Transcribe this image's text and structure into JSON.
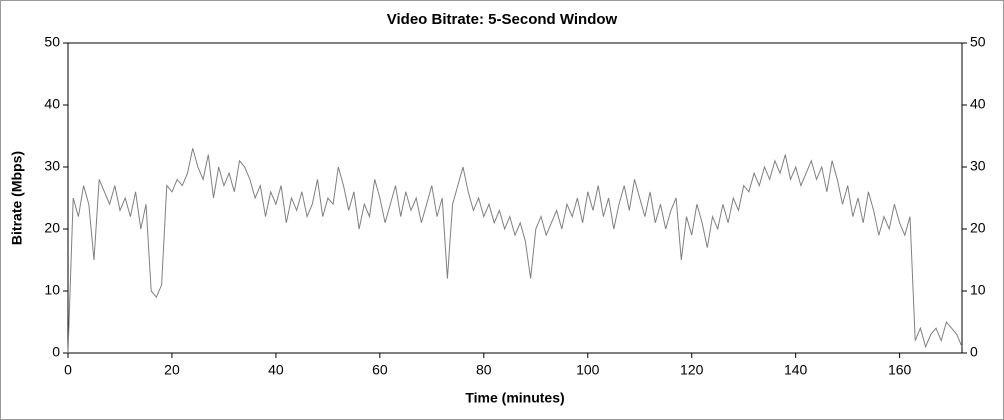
{
  "chart_data": {
    "type": "line",
    "title": "Video Bitrate: 5-Second Window",
    "x_label": "Time (minutes)",
    "y_label": "Bitrate (Mbps)",
    "xlim": [
      0,
      172
    ],
    "xticks": [
      0,
      20,
      40,
      60,
      80,
      100,
      120,
      140,
      160
    ],
    "ylim": [
      0,
      50
    ],
    "yticks": [
      0,
      10,
      20,
      30,
      40,
      50
    ],
    "y2lim": [
      0,
      50
    ],
    "y2ticks": [
      0,
      10,
      20,
      30,
      40,
      50
    ],
    "series": [
      {
        "color": "#808080",
        "x": [
          0,
          1,
          2,
          3,
          4,
          5,
          6,
          7,
          8,
          9,
          10,
          11,
          12,
          13,
          14,
          15,
          16,
          17,
          18,
          19,
          20,
          21,
          22,
          23,
          24,
          25,
          26,
          27,
          28,
          29,
          30,
          31,
          32,
          33,
          34,
          35,
          36,
          37,
          38,
          39,
          40,
          41,
          42,
          43,
          44,
          45,
          46,
          47,
          48,
          49,
          50,
          51,
          52,
          53,
          54,
          55,
          56,
          57,
          58,
          59,
          60,
          61,
          62,
          63,
          64,
          65,
          66,
          67,
          68,
          69,
          70,
          71,
          72,
          73,
          74,
          75,
          76,
          77,
          78,
          79,
          80,
          81,
          82,
          83,
          84,
          85,
          86,
          87,
          88,
          89,
          90,
          91,
          92,
          93,
          94,
          95,
          96,
          97,
          98,
          99,
          100,
          101,
          102,
          103,
          104,
          105,
          106,
          107,
          108,
          109,
          110,
          111,
          112,
          113,
          114,
          115,
          116,
          117,
          118,
          119,
          120,
          121,
          122,
          123,
          124,
          125,
          126,
          127,
          128,
          129,
          130,
          131,
          132,
          133,
          134,
          135,
          136,
          137,
          138,
          139,
          140,
          141,
          142,
          143,
          144,
          145,
          146,
          147,
          148,
          149,
          150,
          151,
          152,
          153,
          154,
          155,
          156,
          157,
          158,
          159,
          160,
          161,
          162,
          163,
          164,
          165,
          166,
          167,
          168,
          169,
          170,
          171,
          172
        ],
        "values": [
          0,
          25,
          22,
          27,
          24,
          15,
          28,
          26,
          24,
          27,
          23,
          25,
          22,
          26,
          20,
          24,
          10,
          9,
          11,
          27,
          26,
          28,
          27,
          29,
          33,
          30,
          28,
          32,
          25,
          30,
          27,
          29,
          26,
          31,
          30,
          28,
          25,
          27,
          22,
          26,
          24,
          27,
          21,
          25,
          23,
          26,
          22,
          24,
          28,
          22,
          25,
          24,
          30,
          27,
          23,
          26,
          20,
          24,
          22,
          28,
          25,
          21,
          24,
          27,
          22,
          26,
          23,
          25,
          21,
          24,
          27,
          22,
          25,
          12,
          24,
          27,
          30,
          26,
          23,
          25,
          22,
          24,
          21,
          23,
          20,
          22,
          19,
          21,
          18,
          12,
          20,
          22,
          19,
          21,
          23,
          20,
          24,
          22,
          25,
          21,
          26,
          23,
          27,
          22,
          25,
          20,
          24,
          27,
          23,
          28,
          25,
          22,
          26,
          21,
          24,
          20,
          23,
          25,
          15,
          22,
          19,
          24,
          21,
          17,
          22,
          20,
          24,
          21,
          25,
          23,
          27,
          26,
          29,
          27,
          30,
          28,
          31,
          29,
          32,
          28,
          30,
          27,
          29,
          31,
          28,
          30,
          26,
          31,
          28,
          24,
          27,
          22,
          25,
          21,
          26,
          23,
          19,
          22,
          20,
          24,
          21,
          19,
          22,
          2,
          4,
          1,
          3,
          4,
          2,
          5,
          4,
          3,
          1
        ]
      }
    ]
  }
}
